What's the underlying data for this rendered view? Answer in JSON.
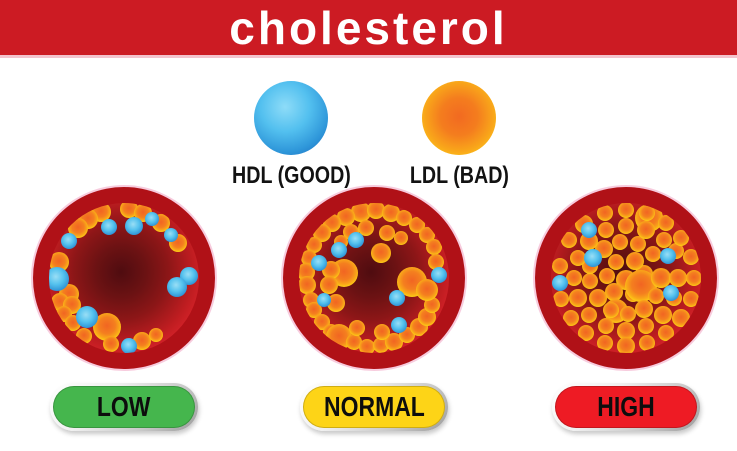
{
  "title": "cholesterol",
  "colors": {
    "banner_red": "#cc1b23",
    "vessel_wall_red": "#b01117",
    "blood_red": "#e8252c",
    "blood_dark_center": "#5c0f12",
    "ldl_orange": "#f26a21",
    "ldl_yellow_ring": "#ffd91e",
    "hdl_blue_light": "#6fcdf4",
    "hdl_blue_dark": "#1d6cb8",
    "pill_low_green": "#45b64d",
    "pill_normal_yellow": "#fdd417",
    "pill_high_red": "#ee1b24"
  },
  "legend": {
    "items": [
      {
        "id": "hdl",
        "label": "HDL (GOOD)",
        "ball": "hdl"
      },
      {
        "id": "ldl",
        "label": "LDL (BAD)",
        "ball": "ldl"
      }
    ]
  },
  "vessels": [
    {
      "id": "low",
      "pill_label": "LOW",
      "pill_color": "#45b64d",
      "ldl": [
        [
          -23,
          -66,
          10
        ],
        [
          5,
          -69,
          9
        ],
        [
          19,
          -65,
          9
        ],
        [
          -36,
          -59,
          10
        ],
        [
          -46,
          -50,
          10
        ],
        [
          37,
          -55,
          9
        ],
        [
          54,
          -35,
          9
        ],
        [
          -65,
          -16,
          10
        ],
        [
          -55,
          16,
          10
        ],
        [
          -64,
          24,
          9
        ],
        [
          -52,
          27,
          9
        ],
        [
          -60,
          36,
          8
        ],
        [
          -51,
          45,
          8
        ],
        [
          -40,
          58,
          8
        ],
        [
          -17,
          49,
          14
        ],
        [
          -13,
          66,
          8
        ],
        [
          18,
          63,
          9
        ],
        [
          32,
          57,
          7
        ]
      ],
      "hdl": [
        [
          -55,
          -37,
          8
        ],
        [
          -15,
          -51,
          8
        ],
        [
          10,
          -52,
          9
        ],
        [
          28,
          -59,
          7
        ],
        [
          47,
          -43,
          7
        ],
        [
          -67,
          1,
          12
        ],
        [
          -37,
          39,
          11
        ],
        [
          5,
          68,
          8
        ],
        [
          65,
          -2,
          9
        ],
        [
          53,
          9,
          10
        ]
      ]
    },
    {
      "id": "normal",
      "pill_label": "NORMAL",
      "pill_color": "#fdd417",
      "ldl": [
        [
          -13,
          -66,
          10
        ],
        [
          2,
          -68,
          9
        ],
        [
          17,
          -65,
          9
        ],
        [
          -28,
          -61,
          9
        ],
        [
          30,
          -60,
          8
        ],
        [
          -42,
          -55,
          9
        ],
        [
          43,
          -53,
          8
        ],
        [
          -52,
          -45,
          9
        ],
        [
          53,
          -43,
          8
        ],
        [
          -60,
          -33,
          8
        ],
        [
          60,
          -31,
          8
        ],
        [
          -65,
          -20,
          8
        ],
        [
          62,
          -16,
          8
        ],
        [
          -68,
          -6,
          9
        ],
        [
          -67,
          7,
          9
        ],
        [
          -63,
          22,
          8
        ],
        [
          -60,
          32,
          8
        ],
        [
          -52,
          44,
          8
        ],
        [
          -43,
          54,
          8
        ],
        [
          -35,
          59,
          13
        ],
        [
          -20,
          64,
          8
        ],
        [
          -7,
          69,
          8
        ],
        [
          7,
          67,
          8
        ],
        [
          20,
          64,
          9
        ],
        [
          33,
          57,
          8
        ],
        [
          45,
          49,
          9
        ],
        [
          53,
          39,
          9
        ],
        [
          58,
          27,
          8
        ],
        [
          -23,
          -46,
          8
        ],
        [
          -8,
          -50,
          8
        ],
        [
          13,
          -45,
          8
        ],
        [
          27,
          -40,
          7
        ],
        [
          -33,
          -36,
          7
        ],
        [
          7,
          -25,
          10
        ],
        [
          -30,
          -5,
          14
        ],
        [
          -43,
          -8,
          9
        ],
        [
          -45,
          7,
          9
        ],
        [
          -38,
          25,
          9
        ],
        [
          38,
          4,
          15
        ],
        [
          53,
          12,
          11
        ],
        [
          -17,
          50,
          8
        ],
        [
          8,
          54,
          8
        ]
      ],
      "hdl": [
        [
          -18,
          -38,
          8
        ],
        [
          -35,
          -28,
          8
        ],
        [
          -55,
          -15,
          8
        ],
        [
          -50,
          22,
          7
        ],
        [
          65,
          -3,
          8
        ],
        [
          23,
          20,
          8
        ],
        [
          25,
          47,
          8
        ]
      ]
    },
    {
      "id": "high",
      "pill_label": "HIGH",
      "pill_color": "#ee1b24",
      "ldl": [
        [
          0,
          2,
          10
        ],
        [
          18,
          -4,
          9
        ],
        [
          7,
          16,
          8
        ],
        [
          -12,
          14,
          9
        ],
        [
          -19,
          -2,
          8
        ],
        [
          -10,
          -16,
          8
        ],
        [
          9,
          -17,
          9
        ],
        [
          23,
          -60,
          14
        ],
        [
          15,
          8,
          16
        ],
        [
          -10,
          33,
          12
        ],
        [
          35,
          0,
          10
        ],
        [
          30,
          18,
          8
        ],
        [
          18,
          31,
          9
        ],
        [
          2,
          36,
          8
        ],
        [
          -15,
          32,
          8
        ],
        [
          -28,
          20,
          9
        ],
        [
          -36,
          3,
          8
        ],
        [
          -36,
          -12,
          8
        ],
        [
          -22,
          -29,
          9
        ],
        [
          -6,
          -36,
          8
        ],
        [
          12,
          -34,
          8
        ],
        [
          27,
          -24,
          8
        ],
        [
          52,
          0,
          9
        ],
        [
          48,
          20,
          8
        ],
        [
          37,
          37,
          9
        ],
        [
          20,
          48,
          8
        ],
        [
          0,
          53,
          9
        ],
        [
          -20,
          48,
          8
        ],
        [
          -37,
          37,
          8
        ],
        [
          -48,
          20,
          9
        ],
        [
          -52,
          0,
          8
        ],
        [
          -48,
          -20,
          8
        ],
        [
          -37,
          -37,
          9
        ],
        [
          -20,
          -48,
          8
        ],
        [
          0,
          -52,
          8
        ],
        [
          20,
          -48,
          9
        ],
        [
          38,
          -38,
          8
        ],
        [
          50,
          -27,
          8
        ],
        [
          68,
          0,
          8
        ],
        [
          65,
          21,
          8
        ],
        [
          55,
          40,
          9
        ],
        [
          40,
          55,
          8
        ],
        [
          21,
          65,
          8
        ],
        [
          0,
          68,
          9
        ],
        [
          -21,
          65,
          8
        ],
        [
          -40,
          55,
          8
        ],
        [
          -55,
          40,
          8
        ],
        [
          -65,
          21,
          8
        ],
        [
          -66,
          -12,
          8
        ],
        [
          -57,
          -38,
          8
        ],
        [
          -42,
          -54,
          9
        ],
        [
          -21,
          -65,
          8
        ],
        [
          0,
          -68,
          8
        ],
        [
          21,
          -65,
          8
        ],
        [
          40,
          -55,
          8
        ],
        [
          55,
          -40,
          8
        ],
        [
          65,
          -21,
          8
        ]
      ],
      "hdl": [
        [
          -37,
          -48,
          8
        ],
        [
          -33,
          -20,
          9
        ],
        [
          42,
          -22,
          8
        ],
        [
          -66,
          5,
          8
        ],
        [
          45,
          15,
          8
        ]
      ]
    }
  ]
}
